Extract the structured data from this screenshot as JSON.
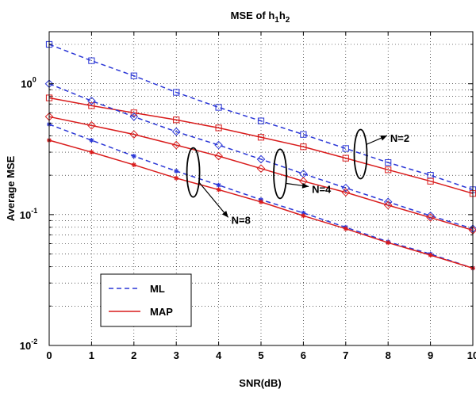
{
  "chart_data": {
    "type": "line",
    "title": "MSE of h1h2",
    "title_main": "MSE of h",
    "title_sub1": "1",
    "title_mid": "h",
    "title_sub2": "2",
    "xlabel": "SNR(dB)",
    "ylabel": "Average MSE",
    "x": [
      0,
      1,
      2,
      3,
      4,
      5,
      6,
      7,
      8,
      9,
      10
    ],
    "xlim": [
      0,
      10
    ],
    "ylim": [
      0.01,
      2.5
    ],
    "yscale": "log",
    "grid": true,
    "x_tick_labels": [
      "0",
      "1",
      "2",
      "3",
      "4",
      "5",
      "6",
      "7",
      "8",
      "9",
      "10"
    ],
    "y_tick_labels": [
      {
        "value": 1,
        "base": "10",
        "exp": "0"
      },
      {
        "value": 0.1,
        "base": "10",
        "exp": "-1"
      },
      {
        "value": 0.01,
        "base": "10",
        "exp": "-2"
      }
    ],
    "legend": {
      "position": "lower-left",
      "entries": [
        {
          "label": "ML",
          "color": "#2a36d6",
          "style": "dashed"
        },
        {
          "label": "MAP",
          "color": "#d91c1c",
          "style": "solid"
        }
      ]
    },
    "series": [
      {
        "name": "ML",
        "N": 2,
        "color": "#2a36d6",
        "style": "dashed",
        "marker": "square",
        "values": [
          2.0,
          1.5,
          1.15,
          0.86,
          0.66,
          0.52,
          0.41,
          0.32,
          0.25,
          0.2,
          0.155
        ]
      },
      {
        "name": "MAP",
        "N": 2,
        "color": "#d91c1c",
        "style": "solid",
        "marker": "square",
        "values": [
          0.78,
          0.68,
          0.6,
          0.53,
          0.46,
          0.39,
          0.33,
          0.27,
          0.22,
          0.18,
          0.145
        ]
      },
      {
        "name": "ML",
        "N": 4,
        "color": "#2a36d6",
        "style": "dashed",
        "marker": "diamond",
        "values": [
          1.0,
          0.74,
          0.56,
          0.43,
          0.34,
          0.265,
          0.205,
          0.16,
          0.125,
          0.098,
          0.078
        ]
      },
      {
        "name": "MAP",
        "N": 4,
        "color": "#d91c1c",
        "style": "solid",
        "marker": "diamond",
        "values": [
          0.56,
          0.48,
          0.41,
          0.34,
          0.28,
          0.225,
          0.18,
          0.148,
          0.118,
          0.095,
          0.076
        ]
      },
      {
        "name": "ML",
        "N": 8,
        "color": "#2a36d6",
        "style": "dashed",
        "marker": "star",
        "values": [
          0.49,
          0.37,
          0.28,
          0.215,
          0.168,
          0.13,
          0.103,
          0.08,
          0.062,
          0.05,
          0.039
        ]
      },
      {
        "name": "MAP",
        "N": 8,
        "color": "#d91c1c",
        "style": "solid",
        "marker": "star",
        "values": [
          0.37,
          0.3,
          0.24,
          0.19,
          0.155,
          0.125,
          0.098,
          0.078,
          0.061,
          0.049,
          0.039
        ]
      }
    ],
    "annotations": [
      {
        "label": "N=2",
        "ellipse_at": {
          "x": 7.35,
          "y": 0.29
        },
        "label_at": {
          "x": 8.05,
          "y": 0.38
        }
      },
      {
        "label": "N=4",
        "ellipse_at": {
          "x": 5.45,
          "y": 0.205
        },
        "label_at": {
          "x": 6.2,
          "y": 0.155
        }
      },
      {
        "label": "N=8",
        "ellipse_at": {
          "x": 3.4,
          "y": 0.21
        },
        "label_at": {
          "x": 4.3,
          "y": 0.09
        }
      }
    ]
  }
}
